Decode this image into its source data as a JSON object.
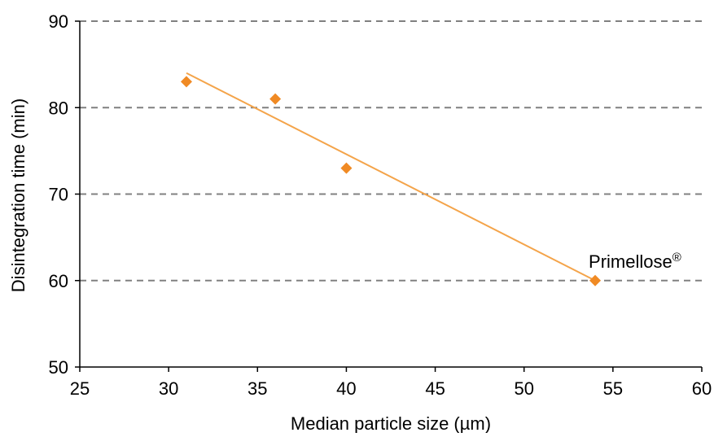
{
  "chart_data": {
    "type": "scatter",
    "xlabel": "Median particle size (µm)",
    "ylabel": "Disintegration time (min)",
    "xlim": [
      25,
      60
    ],
    "ylim": [
      50,
      90
    ],
    "x_ticks": [
      "25",
      "30",
      "35",
      "40",
      "45",
      "50",
      "55",
      "60"
    ],
    "y_ticks": [
      "50",
      "60",
      "70",
      "80",
      "90"
    ],
    "grid": "horizontal dashed",
    "legend": "none",
    "series": [
      {
        "x": [
          31,
          36,
          40,
          54
        ],
        "y": [
          83,
          81,
          73,
          60
        ],
        "marker": "diamond",
        "color": "#f08a24"
      }
    ],
    "trendline": {
      "type": "linear",
      "x": [
        31,
        54
      ],
      "y": [
        84,
        60
      ],
      "color": "#f4a44a"
    },
    "annotations": [
      {
        "text": "Primellose",
        "superscript": "®",
        "x": 54,
        "y": 60
      }
    ]
  }
}
